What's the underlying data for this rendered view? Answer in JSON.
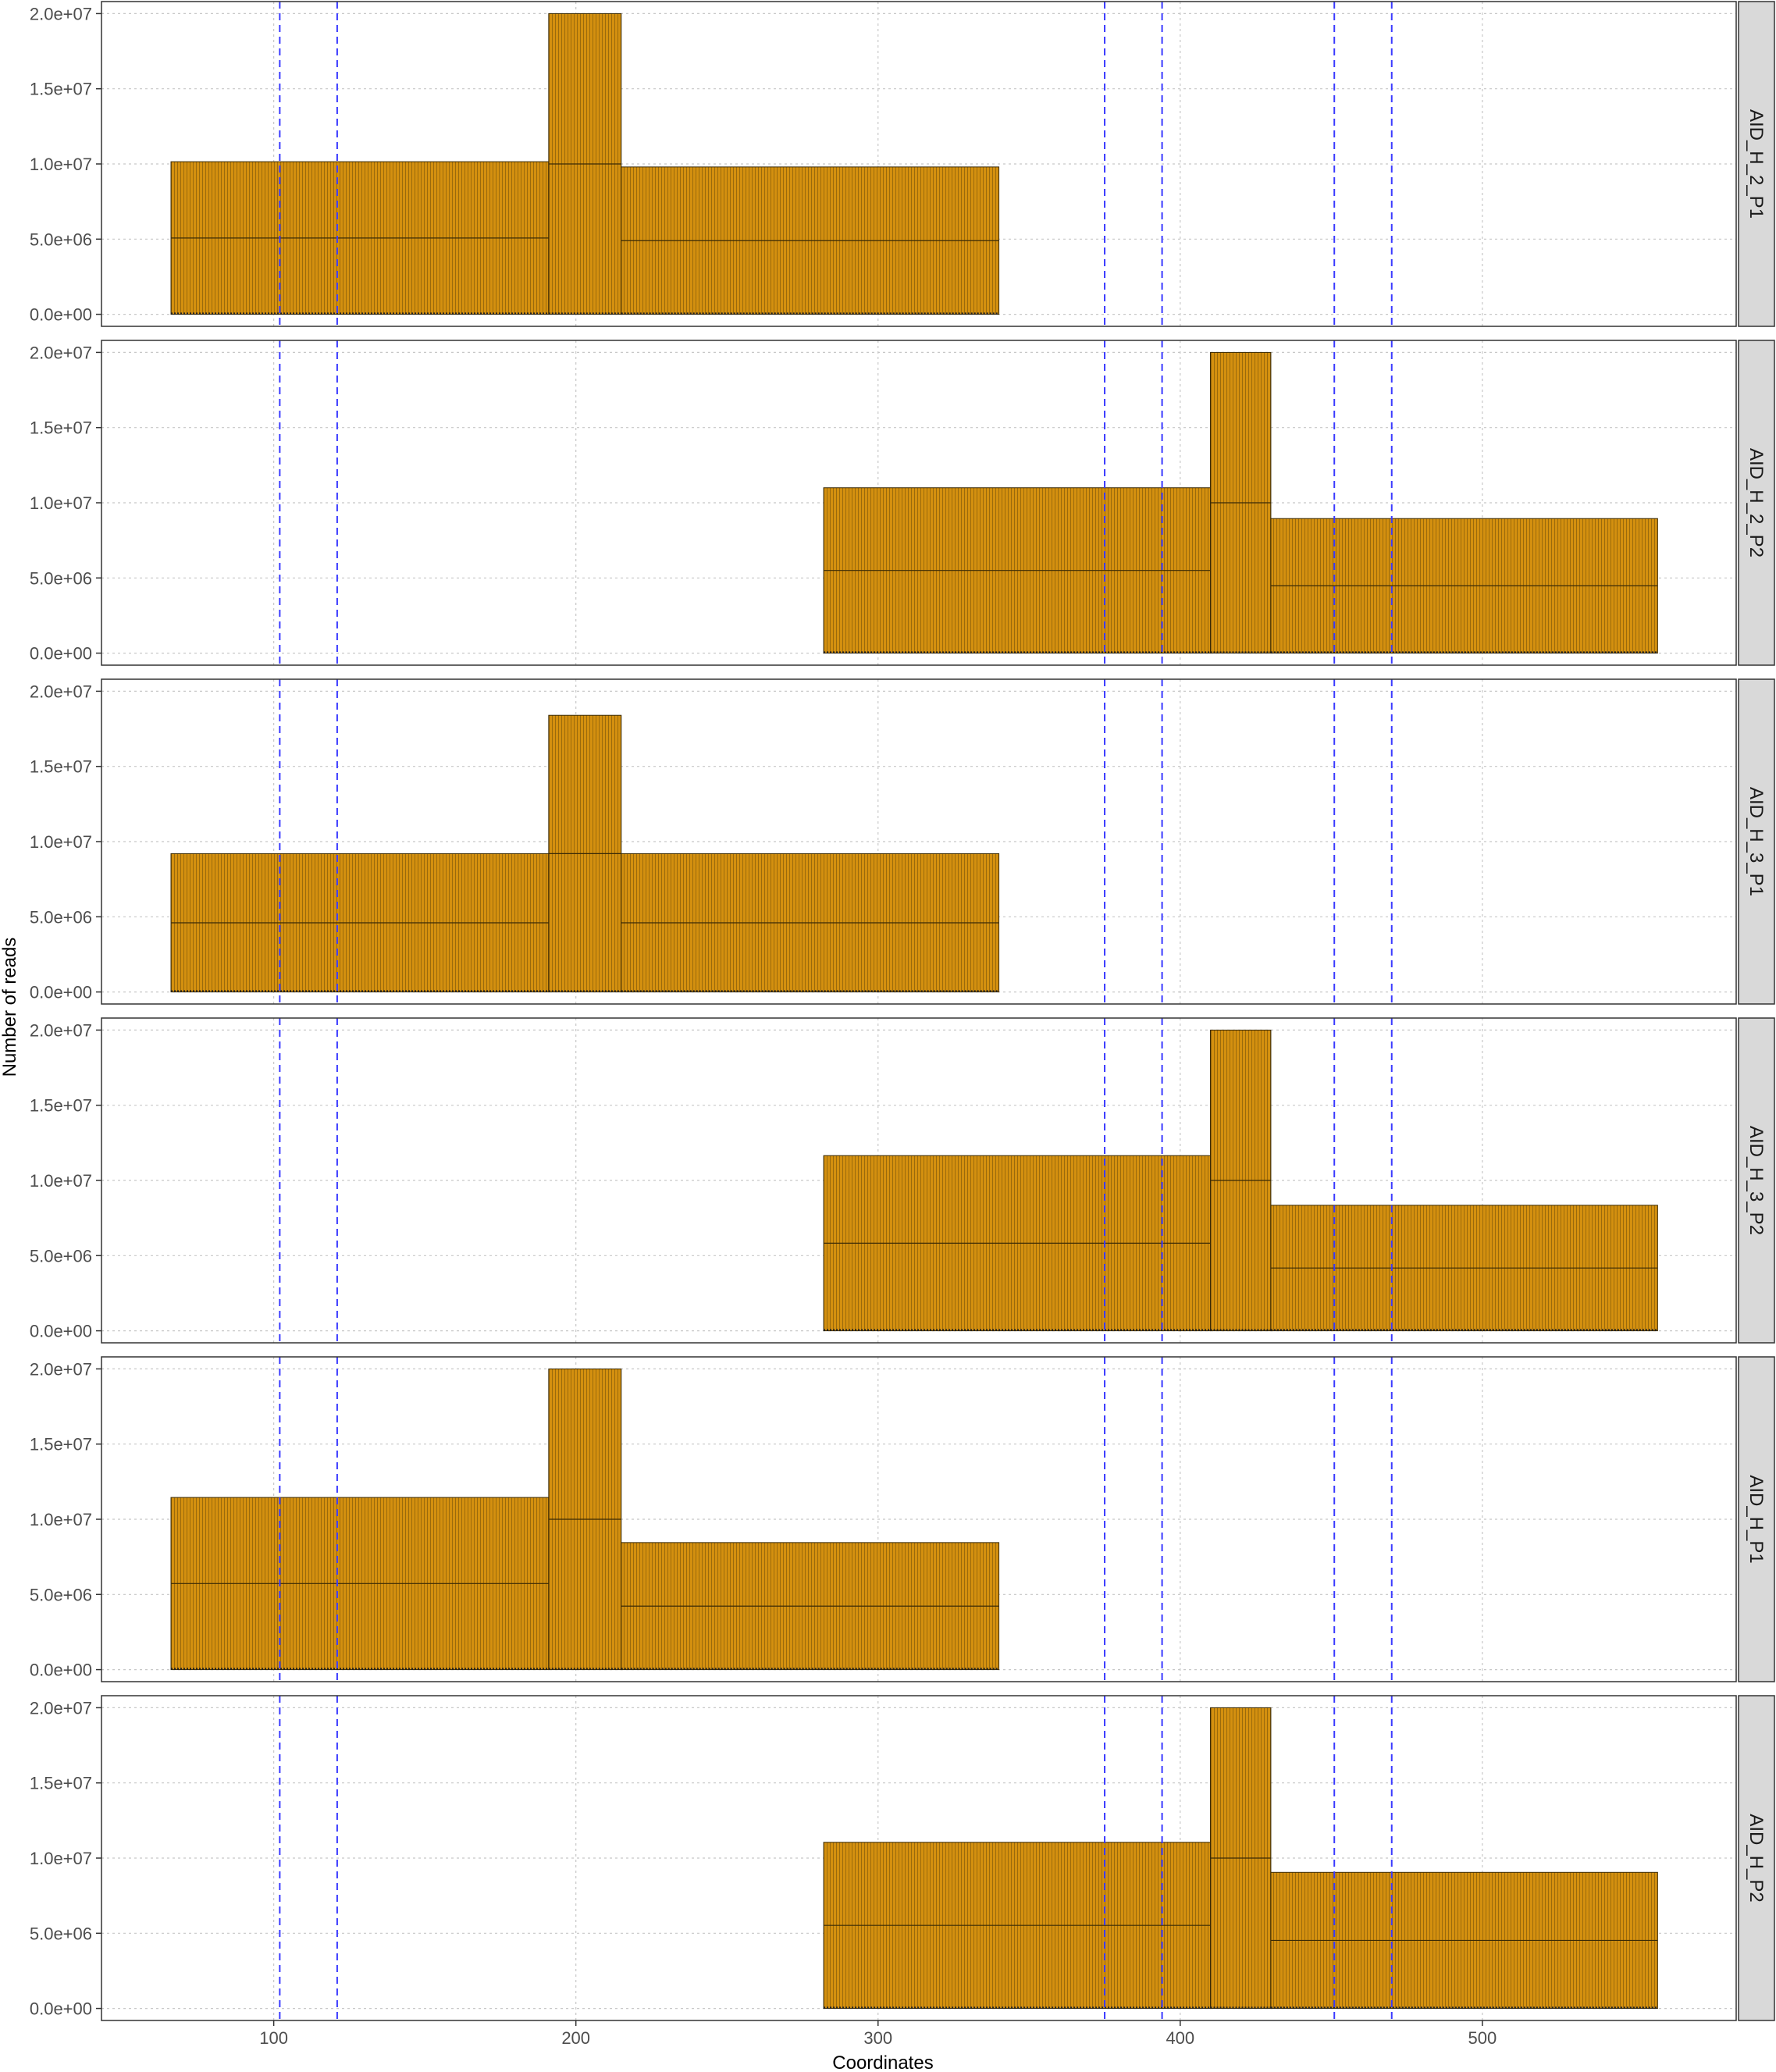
{
  "chart_data": {
    "type": "bar",
    "xlabel": "Coordinates",
    "ylabel": "Number of reads",
    "xlim": [
      43,
      584
    ],
    "ylim": [
      -800000,
      20800000
    ],
    "x_ticks": [
      100,
      200,
      300,
      400,
      500
    ],
    "x_tick_labels": [
      "100",
      "200",
      "300",
      "400",
      "500"
    ],
    "y_ticks": [
      0,
      5000000,
      10000000,
      15000000,
      20000000
    ],
    "y_tick_labels": [
      "0.0e+00",
      "5.0e+06",
      "1.0e+07",
      "1.5e+07",
      "2.0e+07"
    ],
    "grid": true,
    "reference_lines": [
      102,
      121,
      375,
      394,
      451,
      470
    ],
    "colors": {
      "bar_fill": "#d4900f",
      "bar_stroke": "#3a2a05",
      "ref_line": "#3a3aff",
      "strip_bg": "#d9d9d9",
      "grid": "#c8c8c8"
    },
    "panels": [
      {
        "label": "AID_H_2_P1",
        "segments": [
          [
            66,
            191,
            10150000
          ],
          [
            191,
            215,
            20000000
          ],
          [
            215,
            340,
            9800000
          ]
        ]
      },
      {
        "label": "AID_H_2_P2",
        "segments": [
          [
            282,
            410,
            11000000
          ],
          [
            410,
            430,
            20000000
          ],
          [
            430,
            558,
            8950000
          ]
        ]
      },
      {
        "label": "AID_H_3_P1",
        "segments": [
          [
            66,
            191,
            9200000
          ],
          [
            191,
            215,
            18400000
          ],
          [
            215,
            340,
            9200000
          ]
        ]
      },
      {
        "label": "AID_H_3_P2",
        "segments": [
          [
            282,
            410,
            11650000
          ],
          [
            410,
            430,
            20000000
          ],
          [
            430,
            558,
            8350000
          ]
        ]
      },
      {
        "label": "AID_H_P1",
        "segments": [
          [
            66,
            191,
            11450000
          ],
          [
            191,
            215,
            20000000
          ],
          [
            215,
            340,
            8450000
          ]
        ]
      },
      {
        "label": "AID_H_P2",
        "segments": [
          [
            282,
            410,
            11050000
          ],
          [
            410,
            430,
            20000000
          ],
          [
            430,
            558,
            9050000
          ]
        ]
      }
    ]
  }
}
